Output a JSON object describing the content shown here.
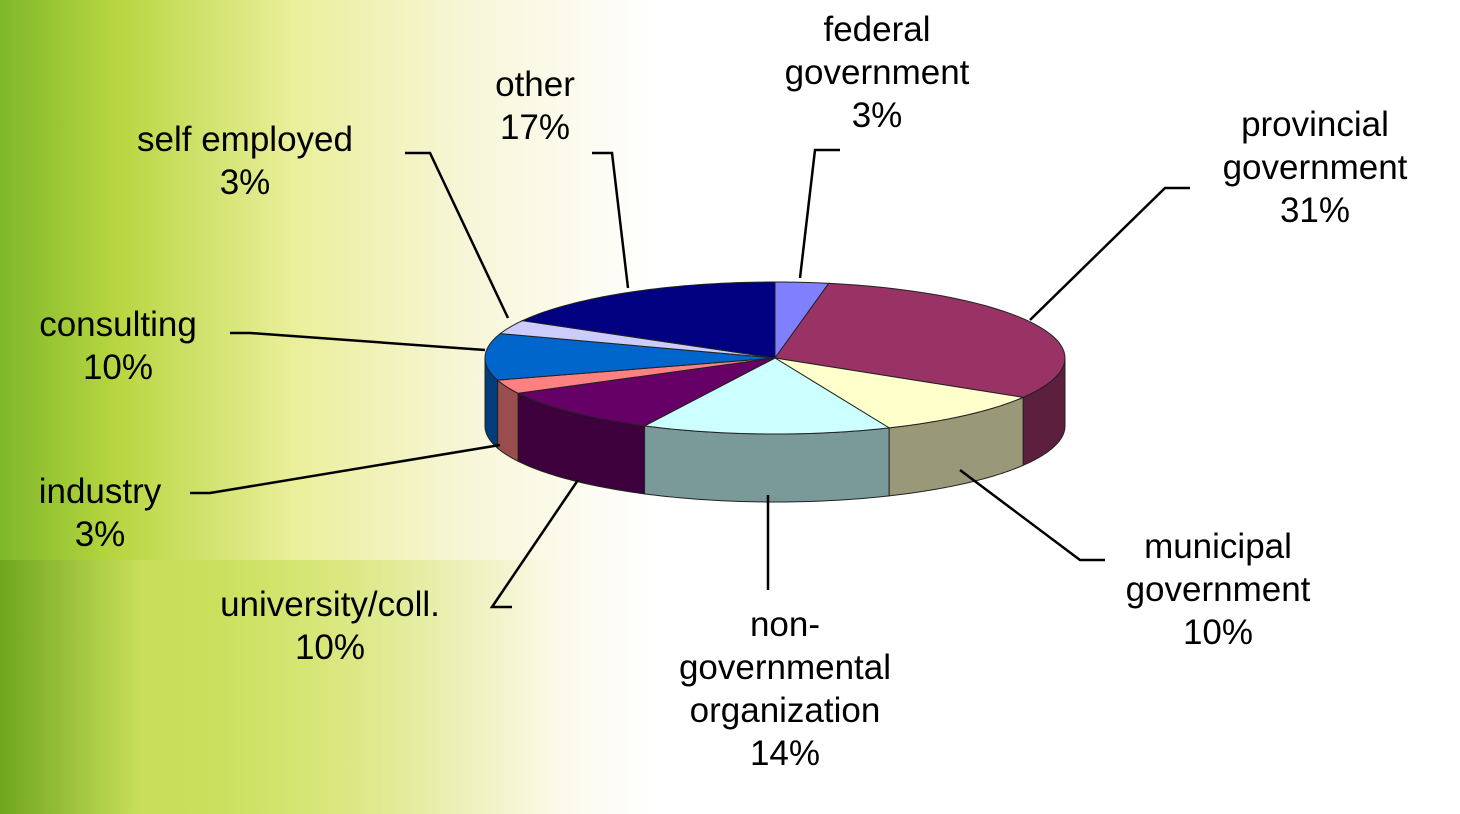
{
  "chart_data": {
    "type": "pie3d",
    "categories": [
      "federal government",
      "provincial government",
      "municipal government",
      "non-governmental organization",
      "university/coll.",
      "industry",
      "consulting",
      "self employed",
      "other"
    ],
    "values": [
      3,
      31,
      10,
      14,
      10,
      3,
      10,
      3,
      17
    ],
    "value_labels": [
      "3%",
      "31%",
      "10%",
      "14%",
      "10%",
      "3%",
      "10%",
      "3%",
      "17%"
    ],
    "colors": [
      "#8080ff",
      "#993366",
      "#ffffcc",
      "#ccffff",
      "#660066",
      "#ff8080",
      "#0066cc",
      "#ccccff",
      "#000080"
    ]
  }
}
